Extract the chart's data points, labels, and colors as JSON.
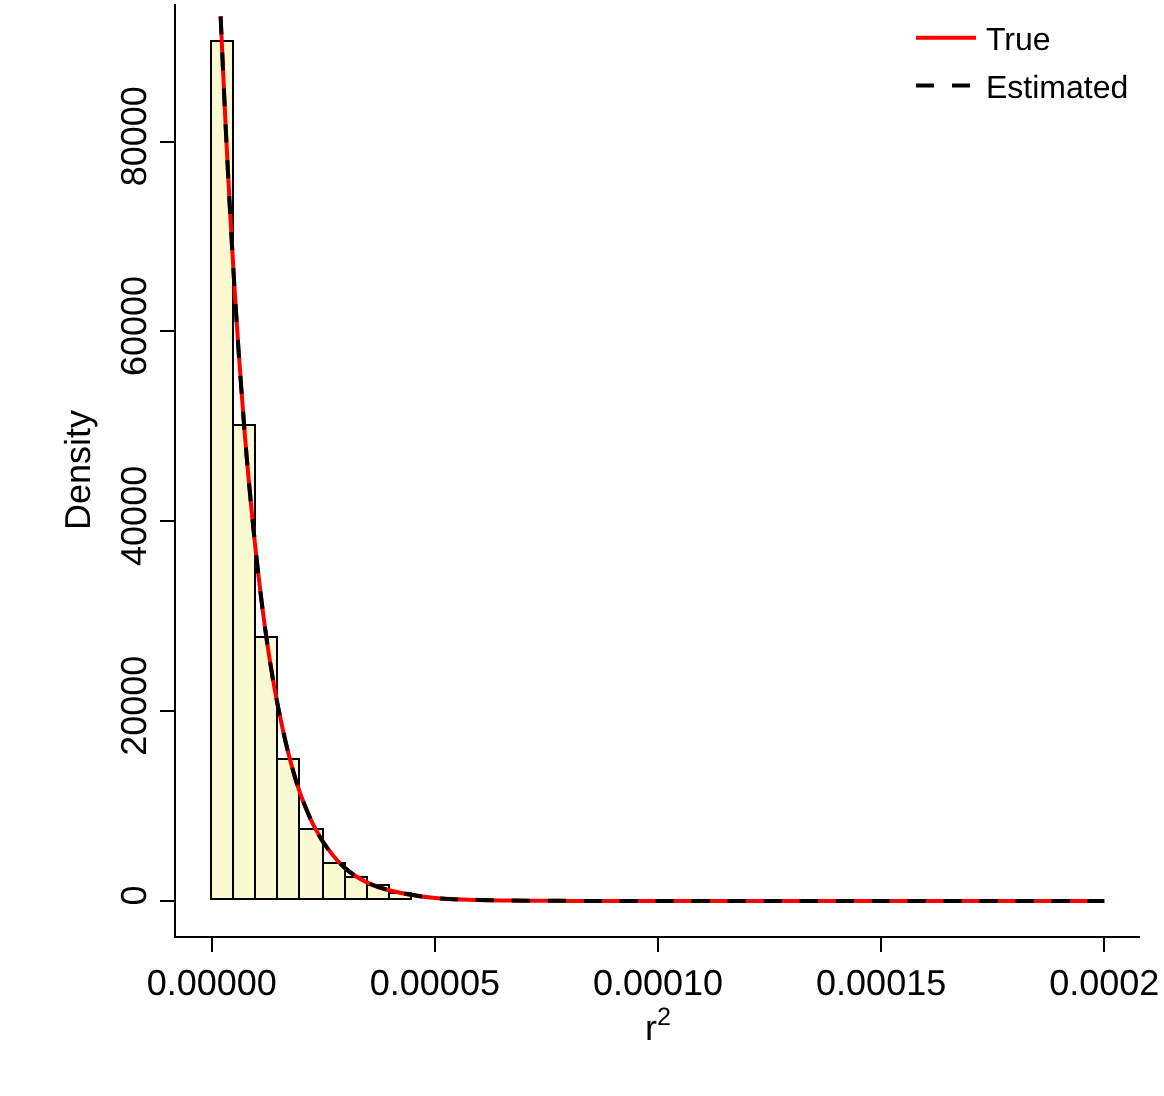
{
  "chart_data": {
    "type": "histogram",
    "xlabel": "r$^{2}$",
    "ylabel": "Density",
    "bins": [
      0,
      5e-06,
      1e-05,
      1.5e-05,
      2e-05,
      2.5e-05,
      3e-05,
      3.5e-05,
      4e-05,
      4.5e-05,
      5e-05
    ],
    "values": [
      90400,
      50000,
      27800,
      14900,
      7500,
      3900,
      2400,
      1600,
      800,
      null
    ],
    "color": "#fafad2",
    "series": [
      {
        "name": "True",
        "type": "line",
        "color": "#ff0000",
        "line_style": "solid",
        "x": [
          2e-06,
          3e-06,
          4e-06,
          5e-06,
          6e-06,
          7e-06,
          8e-06,
          1e-05,
          1.2e-05,
          1.4e-05,
          1.6e-05,
          1.8e-05,
          2e-05,
          2.3e-05,
          2.6e-05,
          3e-05,
          3.5e-05,
          4e-05,
          5e-05,
          6e-05,
          8e-05,
          0.0001,
          0.00015,
          0.0002
        ],
        "values": [
          93200,
          82800,
          73600,
          65400,
          58100,
          51700,
          45900,
          36300,
          28600,
          22600,
          17900,
          14100,
          11100,
          7800,
          5500,
          3400,
          1900,
          1100,
          300,
          100,
          0,
          0,
          0,
          0
        ]
      },
      {
        "name": "Estimated",
        "type": "line",
        "color": "#000000",
        "line_style": "dashed",
        "x": [
          2e-06,
          3e-06,
          4e-06,
          5e-06,
          6e-06,
          7e-06,
          8e-06,
          1e-05,
          1.2e-05,
          1.4e-05,
          1.6e-05,
          1.8e-05,
          2e-05,
          2.3e-05,
          2.6e-05,
          3e-05,
          3.5e-05,
          4e-05,
          5e-05,
          6e-05,
          8e-05,
          0.0001,
          0.00015,
          0.0002
        ],
        "values": [
          93200,
          82800,
          73600,
          65400,
          58100,
          51700,
          45900,
          36300,
          28600,
          22600,
          17900,
          14100,
          11100,
          7800,
          5500,
          3400,
          1900,
          1100,
          300,
          100,
          0,
          0,
          0,
          0
        ]
      }
    ],
    "xlim": [
      -8e-06,
      0.000208
    ],
    "xticks": [
      {
        "value": 0,
        "label": "0.00000"
      },
      {
        "value": 5e-05,
        "label": "0.00005"
      },
      {
        "value": 0.0001,
        "label": "0.00010"
      },
      {
        "value": 0.00015,
        "label": "0.00015"
      },
      {
        "value": 0.0002,
        "label": "0.0002"
      }
    ],
    "ylim": [
      -3700,
      94500
    ],
    "yticks": [
      0,
      20000,
      40000,
      60000,
      80000
    ],
    "legend": "top right"
  }
}
